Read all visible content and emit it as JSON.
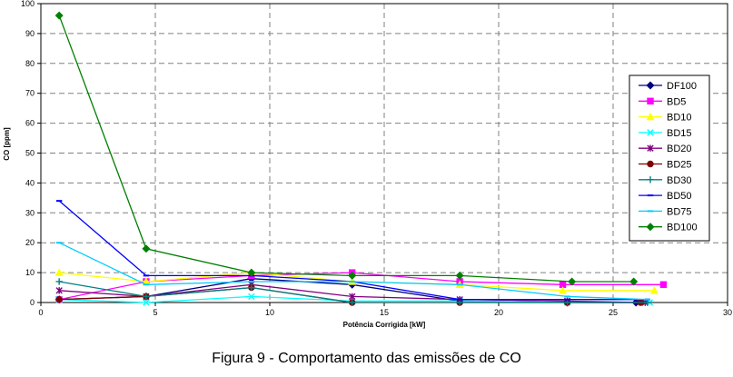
{
  "caption": "Figura 9 - Comportamento das emissões de CO",
  "chart_data": {
    "type": "line",
    "title": "",
    "xlabel": "Potência Corrigida [kW]",
    "ylabel": "CO [ppm]",
    "xlim": [
      0,
      30
    ],
    "ylim": [
      0,
      100
    ],
    "xticks": [
      "0",
      "5",
      "10",
      "15",
      "20",
      "25",
      "30"
    ],
    "yticks": [
      "0",
      "10",
      "20",
      "30",
      "40",
      "50",
      "60",
      "70",
      "80",
      "90",
      "100"
    ],
    "grid": "dashed",
    "legend_position": "right",
    "series": [
      {
        "name": "DF100",
        "color": "#000080",
        "marker": "diamond",
        "x": [
          0.8,
          4.6,
          9.2,
          13.6,
          18.3,
          23.0,
          26.0
        ],
        "y": [
          1,
          2,
          8,
          6,
          0.5,
          0,
          0
        ]
      },
      {
        "name": "BD5",
        "color": "#ff00ff",
        "marker": "square",
        "x": [
          0.8,
          4.6,
          9.2,
          13.6,
          18.3,
          22.8,
          27.2
        ],
        "y": [
          1,
          7,
          9,
          10,
          7,
          6,
          6
        ]
      },
      {
        "name": "BD10",
        "color": "#ffff00",
        "marker": "triangle",
        "x": [
          0.8,
          4.6,
          9.2,
          13.6,
          18.3,
          22.8,
          26.8
        ],
        "y": [
          10,
          7,
          10,
          7,
          6,
          4,
          4
        ]
      },
      {
        "name": "BD15",
        "color": "#00ffff",
        "marker": "x",
        "x": [
          0.8,
          4.6,
          9.2,
          13.6,
          18.3,
          23.0,
          26.6
        ],
        "y": [
          1,
          0,
          2,
          0.5,
          0.5,
          0,
          0
        ]
      },
      {
        "name": "BD20",
        "color": "#800080",
        "marker": "star",
        "x": [
          0.8,
          4.6,
          9.2,
          13.6,
          18.3,
          23.0,
          26.4
        ],
        "y": [
          4,
          2,
          6,
          2,
          1,
          0.5,
          0
        ]
      },
      {
        "name": "BD25",
        "color": "#800000",
        "marker": "circle",
        "x": [
          0.8,
          4.6,
          9.2,
          13.6,
          18.3,
          23.0,
          26.2
        ],
        "y": [
          1,
          2,
          5,
          0,
          0,
          0,
          0
        ]
      },
      {
        "name": "BD30",
        "color": "#008080",
        "marker": "plus",
        "x": [
          0.8,
          4.6,
          9.2,
          13.6,
          18.3,
          23.0,
          26.5
        ],
        "y": [
          7,
          2,
          5,
          0,
          0,
          0,
          0
        ]
      },
      {
        "name": "BD50",
        "color": "#0000ff",
        "marker": "dash",
        "x": [
          0.8,
          4.6,
          9.2,
          13.6,
          18.3,
          23.0,
          26.5
        ],
        "y": [
          34,
          9,
          9,
          7,
          1,
          1,
          1
        ]
      },
      {
        "name": "BD75",
        "color": "#00ccff",
        "marker": "dash",
        "x": [
          0.8,
          4.6,
          9.2,
          13.6,
          18.3,
          23.0,
          26.5
        ],
        "y": [
          20,
          6,
          7,
          7,
          6,
          2,
          1
        ]
      },
      {
        "name": "BD100",
        "color": "#008000",
        "marker": "diamond",
        "x": [
          0.8,
          4.6,
          9.2,
          13.6,
          18.3,
          23.2,
          25.9
        ],
        "y": [
          96,
          18,
          10,
          9,
          9,
          7,
          7
        ]
      }
    ]
  }
}
